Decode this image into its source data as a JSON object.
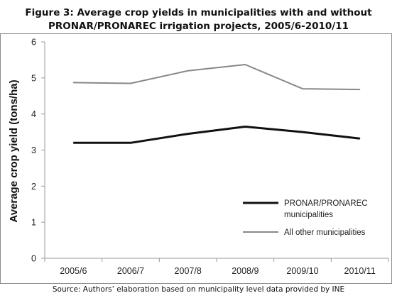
{
  "title_line1": "Figure 3: Average crop yields in municipalities with and without",
  "title_line2": "PRONAR/PRONAREC irrigation projects, 2005/6-2010/11",
  "source": "Source: Authors’ elaboration based on municipality level data provided by INE",
  "colors": {
    "series1": "#111111",
    "series2": "#888888",
    "axis": "#999999",
    "frame": "#8c8c8c"
  },
  "chart_data": {
    "type": "line",
    "title": "Figure 3: Average crop yields in municipalities with and without PRONAR/PRONAREC irrigation projects, 2005/6-2010/11",
    "xlabel": "",
    "ylabel": "Average crop yield  (tons/ha)",
    "categories": [
      "2005/6",
      "2006/7",
      "2007/8",
      "2008/9",
      "2009/10",
      "2010/11"
    ],
    "ylim": [
      0,
      6
    ],
    "yticks": [
      0,
      1,
      2,
      3,
      4,
      5,
      6
    ],
    "grid": false,
    "legend_position": "bottom-right",
    "series": [
      {
        "name": "PRONAR/PRONAREC municipalities",
        "legend_lines": [
          "PRONAR/PRONAREC",
          "municipalities"
        ],
        "values": [
          3.2,
          3.2,
          3.45,
          3.65,
          3.5,
          3.32
        ]
      },
      {
        "name": "All other municipalities",
        "legend_lines": [
          "All other municipalities"
        ],
        "values": [
          4.87,
          4.85,
          5.2,
          5.37,
          4.7,
          4.68
        ]
      }
    ]
  }
}
